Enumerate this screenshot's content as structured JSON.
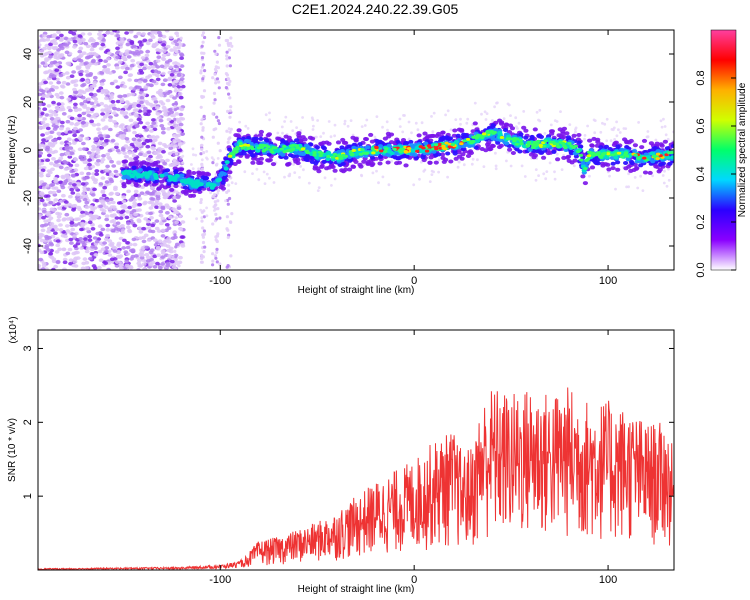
{
  "title": "C2E1.2024.240.22.39.G05",
  "chart_data": [
    {
      "type": "heatmap",
      "xlabel": "Height of straight line (km)",
      "ylabel": "Frequency (Hz)",
      "xlim": [
        -194,
        134
      ],
      "ylim": [
        -50,
        50
      ],
      "xticks": [
        -100,
        0,
        100
      ],
      "yticks": [
        -40,
        -20,
        0,
        20,
        40
      ],
      "colorbar": {
        "label": "Normalized spectral amplitude",
        "range": [
          0,
          1
        ],
        "ticks": [
          "0.0",
          "0.2",
          "0.4",
          "0.6",
          "0.8"
        ],
        "colors": [
          "#ffffff",
          "#8a00ff",
          "#2b00ff",
          "#00d8ff",
          "#00ff6a",
          "#d0ff00",
          "#ffb000",
          "#ff0000",
          "#ff3fa0"
        ]
      },
      "ridge": {
        "x": [
          -194,
          -150,
          -140,
          -130,
          -120,
          -115,
          -110,
          -105,
          -100,
          -95,
          -90,
          -80,
          -70,
          -60,
          -50,
          -40,
          -30,
          -20,
          -10,
          0,
          10,
          20,
          30,
          35,
          40,
          45,
          50,
          60,
          70,
          80,
          85,
          88,
          90,
          100,
          110,
          120,
          130,
          134
        ],
        "y": [
          -8,
          -10,
          -10,
          -11,
          -12,
          -14,
          -14,
          -15,
          -13,
          -3,
          2,
          1,
          0,
          1,
          -2,
          -3,
          -1,
          0,
          0,
          0,
          1,
          2,
          4,
          6,
          7,
          6,
          4,
          2,
          3,
          2,
          0,
          -8,
          -2,
          -2,
          -2,
          -3,
          -2,
          -2
        ]
      }
    },
    {
      "type": "line",
      "xlabel": "Height of straight line (km)",
      "ylabel": "SNR (10 * v/v)",
      "yscale_label": "(x10⁴)",
      "xlim": [
        -194,
        134
      ],
      "ylim": [
        0,
        3.25
      ],
      "xticks": [
        -100,
        0,
        100
      ],
      "yticks": [
        1,
        2,
        3
      ],
      "color": "#ee3333",
      "envelope": {
        "x": [
          -194,
          -120,
          -100,
          -90,
          -85,
          -80,
          -70,
          -60,
          -50,
          -40,
          -30,
          -20,
          -10,
          0,
          10,
          20,
          25,
          30,
          35,
          40,
          50,
          60,
          70,
          80,
          90,
          100,
          110,
          120,
          130,
          134
        ],
        "y": [
          0.02,
          0.04,
          0.07,
          0.12,
          0.25,
          0.4,
          0.45,
          0.55,
          0.65,
          0.8,
          1.0,
          1.2,
          1.35,
          1.5,
          1.75,
          1.9,
          1.6,
          1.7,
          2.3,
          2.5,
          2.4,
          2.5,
          2.4,
          2.5,
          2.3,
          2.3,
          2.2,
          2.0,
          2.0,
          1.6
        ]
      }
    }
  ]
}
